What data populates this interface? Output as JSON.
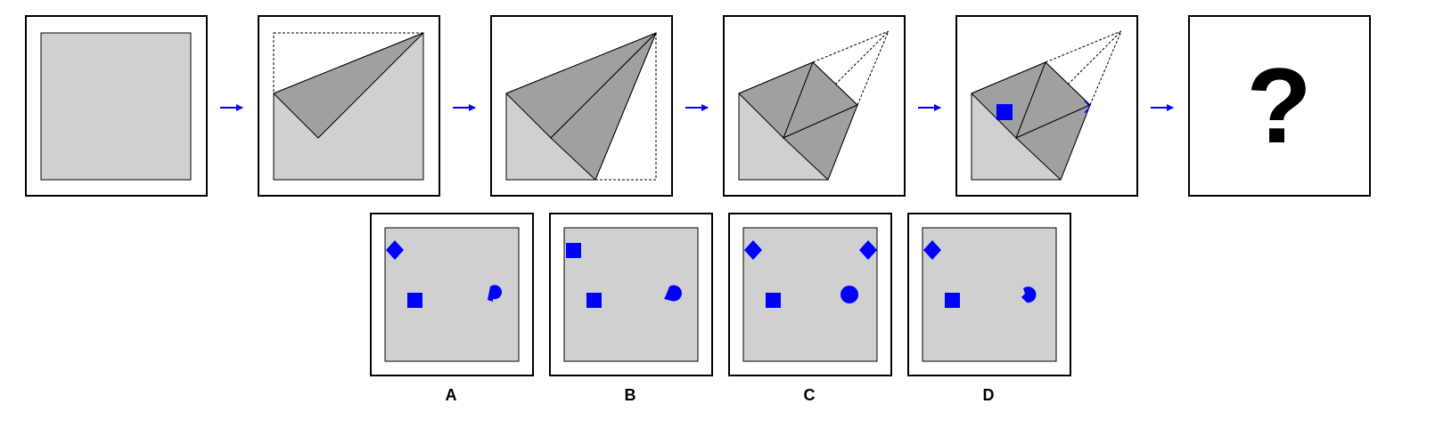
{
  "question_mark": "?",
  "colors": {
    "paper": "#d0d0d0",
    "fold": "#a0a0a0",
    "outline": "#000000",
    "marker": "#0000ff",
    "arrow": "#0000ff",
    "frame_bg": "#ffffff"
  },
  "options": [
    {
      "label": "A",
      "markers": [
        "diamond-top-left",
        "square-center-left",
        "circle-notched-right"
      ]
    },
    {
      "label": "B",
      "markers": [
        "square-top-left",
        "square-center-left",
        "circle-notched-right"
      ]
    },
    {
      "label": "C",
      "markers": [
        "diamond-top-left",
        "diamond-top-right",
        "square-center-left",
        "circle-right"
      ]
    },
    {
      "label": "D",
      "markers": [
        "diamond-top-left",
        "square-center-left",
        "circle-notched-right"
      ]
    }
  ]
}
